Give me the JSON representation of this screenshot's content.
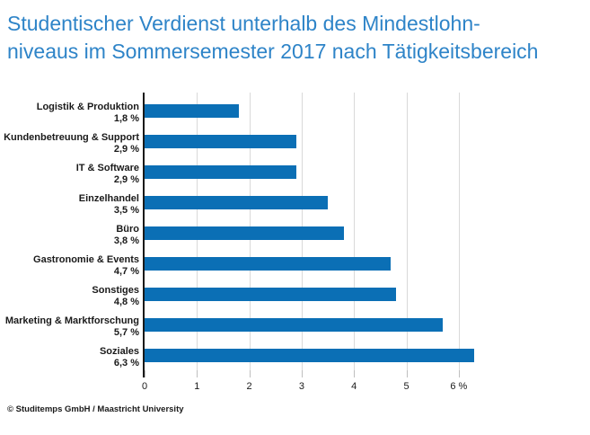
{
  "header": {
    "line1": "Studentischer Verdienst unterhalb des Mindestlohn-",
    "line2": "niveaus im Sommersemester 2017 nach Tätigkeitsbereich"
  },
  "footer": {
    "text": "© Studitemps GmbH / Maastricht University"
  },
  "colors": {
    "bar": "#0b6fb5",
    "title": "#2e84c8",
    "gridline": "#d9d9d9",
    "axis": "#1a1a1a"
  },
  "chart_data": {
    "type": "bar",
    "orientation": "horizontal",
    "title": "Studentischer Verdienst unterhalb des Mindestlohnniveaus im Sommersemester 2017 nach Tätigkeitsbereich",
    "categories": [
      "Logistik & Produktion",
      "Kundenbetreuung & Support",
      "IT & Software",
      "Einzelhandel",
      "Büro",
      "Gastronomie & Events",
      "Sonstiges",
      "Marketing & Marktforschung",
      "Soziales"
    ],
    "values": [
      1.8,
      2.9,
      2.9,
      3.5,
      3.8,
      4.7,
      4.8,
      5.7,
      6.3
    ],
    "value_labels": [
      "1,8 %",
      "2,9 %",
      "2,9 %",
      "3,5 %",
      "3,8 %",
      "4,7 %",
      "4,8 %",
      "5,7 %",
      "6,3 %"
    ],
    "xlabel": "",
    "ylabel": "",
    "xlim": [
      0,
      6.5
    ],
    "x_ticks": [
      {
        "value": 0,
        "label": "0"
      },
      {
        "value": 1,
        "label": "1"
      },
      {
        "value": 2,
        "label": "2"
      },
      {
        "value": 3,
        "label": "3"
      },
      {
        "value": 4,
        "label": "4"
      },
      {
        "value": 5,
        "label": "5"
      },
      {
        "value": 6,
        "label": "6 %"
      }
    ],
    "grid": "vertical",
    "legend": "none"
  }
}
